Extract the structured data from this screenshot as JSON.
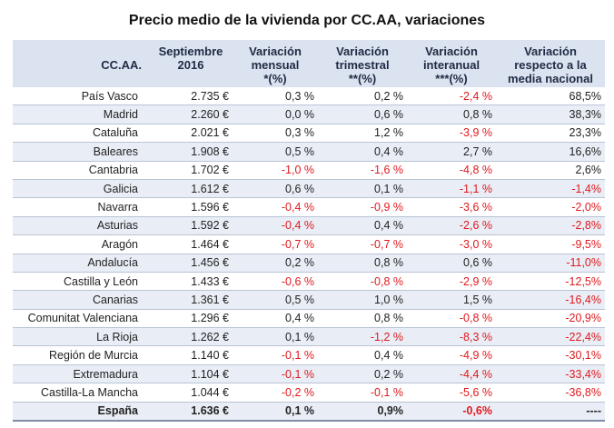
{
  "chart_data": {
    "type": "table",
    "title": "Precio medio de la vivienda por CC.AA, variaciones",
    "columns": [
      [
        "CC.AA."
      ],
      [
        "Septiembre",
        "2016"
      ],
      [
        "Variación",
        "mensual",
        "*(%)"
      ],
      [
        "Variación",
        "trimestral",
        "**(%)"
      ],
      [
        "Variación",
        "interanual",
        "***(%)"
      ],
      [
        "Variación",
        "respecto a la",
        "media nacional"
      ]
    ],
    "rows": [
      [
        "País Vasco",
        "2.735 €",
        "0,3 %",
        "0,2 %",
        "-2,4 %",
        "68,5%"
      ],
      [
        "Madrid",
        "2.260 €",
        "0,0 %",
        "0,6 %",
        "0,8 %",
        "38,3%"
      ],
      [
        "Cataluña",
        "2.021 €",
        "0,3 %",
        "1,2 %",
        "-3,9 %",
        "23,3%"
      ],
      [
        "Baleares",
        "1.908 €",
        "0,5 %",
        "0,4 %",
        "2,7 %",
        "16,6%"
      ],
      [
        "Cantabria",
        "1.702 €",
        "-1,0 %",
        "-1,6 %",
        "-4,8 %",
        "2,6%"
      ],
      [
        "Galicia",
        "1.612 €",
        "0,6 %",
        "0,1 %",
        "-1,1 %",
        "-1,4%"
      ],
      [
        "Navarra",
        "1.596 €",
        "-0,4 %",
        "-0,9 %",
        "-3,6 %",
        "-2,0%"
      ],
      [
        "Asturias",
        "1.592 €",
        "-0,4 %",
        "0,4 %",
        "-2,6 %",
        "-2,8%"
      ],
      [
        "Aragón",
        "1.464 €",
        "-0,7 %",
        "-0,7 %",
        "-3,0 %",
        "-9,5%"
      ],
      [
        "Andalucía",
        "1.456 €",
        "0,2 %",
        "0,8 %",
        "0,6 %",
        "-11,0%"
      ],
      [
        "Castilla y León",
        "1.433 €",
        "-0,6 %",
        "-0,8 %",
        "-2,9 %",
        "-12,5%"
      ],
      [
        "Canarias",
        "1.361 €",
        "0,5 %",
        "1,0 %",
        "1,5 %",
        "-16,4%"
      ],
      [
        "Comunitat Valenciana",
        "1.296 €",
        "0,4 %",
        "0,8 %",
        "-0,8 %",
        "-20,9%"
      ],
      [
        "La Rioja",
        "1.262 €",
        "0,1 %",
        "-1,2 %",
        "-8,3 %",
        "-22,4%"
      ],
      [
        "Región de Murcia",
        "1.140 €",
        "-0,1 %",
        "0,4 %",
        "-4,9 %",
        "-30,1%"
      ],
      [
        "Extremadura",
        "1.104 €",
        "-0,1 %",
        "0,2 %",
        "-4,4 %",
        "-33,4%"
      ],
      [
        "Castilla-La Mancha",
        "1.044 €",
        "-0,2 %",
        "-0,1 %",
        "-5,6 %",
        "-36,8%"
      ]
    ],
    "total": [
      "España",
      "1.636 €",
      "0,1 %",
      "0,9%",
      "-0,6%",
      "----"
    ],
    "negative_color": "#e0191e",
    "header_color": "#dbe3f0",
    "stripe_color": "#e9eef6"
  }
}
